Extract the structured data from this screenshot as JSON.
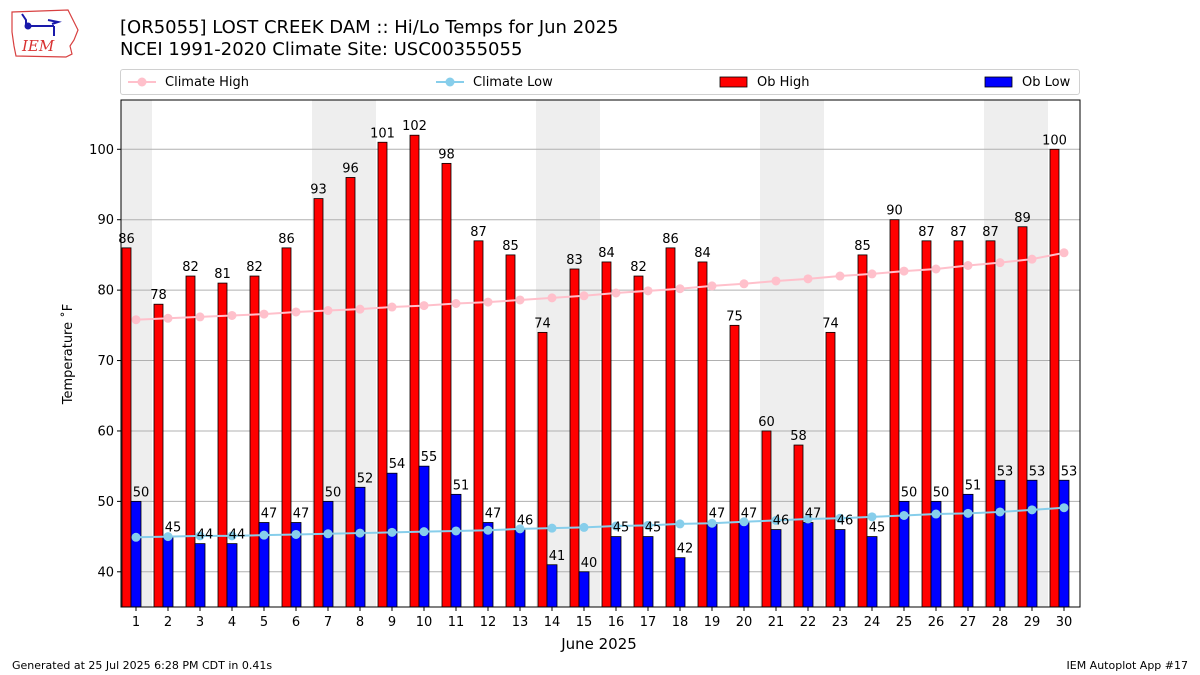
{
  "header": {
    "title_line1": "[OR5055] LOST CREEK DAM :: Hi/Lo Temps for Jun 2025",
    "title_line2": "NCEI 1991-2020 Climate Site: USC00355055",
    "logo_text": "IEM"
  },
  "footer": {
    "generated": "Generated at 25 Jul 2025 6:28 PM CDT in 0.41s",
    "app": "IEM Autoplot App #17"
  },
  "colors": {
    "ob_high": "#ff0000",
    "ob_low": "#0000ff",
    "climate_high": "#ffc0cb",
    "climate_low": "#87ceeb",
    "weekend_shade": "#eeeeee",
    "grid": "#b0b0b0"
  },
  "chart_data": {
    "type": "bar",
    "title": "[OR5055] LOST CREEK DAM :: Hi/Lo Temps for Jun 2025",
    "subtitle": "NCEI 1991-2020 Climate Site: USC00355055",
    "xlabel": "June 2025",
    "ylabel": "Temperature $^\\circ$F",
    "ylabel_display": "Temperature ˚F",
    "ylim": [
      35,
      107
    ],
    "yticks": [
      40,
      50,
      60,
      70,
      80,
      90,
      100
    ],
    "grid": "y",
    "legend_position": "top",
    "categories": [
      1,
      2,
      3,
      4,
      5,
      6,
      7,
      8,
      9,
      10,
      11,
      12,
      13,
      14,
      15,
      16,
      17,
      18,
      19,
      20,
      21,
      22,
      23,
      24,
      25,
      26,
      27,
      28,
      29,
      30
    ],
    "weekend_days": [
      1,
      7,
      8,
      14,
      15,
      21,
      22,
      28,
      29
    ],
    "series": [
      {
        "name": "Ob High",
        "kind": "bar",
        "values": [
          86,
          78,
          82,
          81,
          82,
          86,
          93,
          96,
          101,
          102,
          98,
          87,
          85,
          74,
          83,
          84,
          82,
          86,
          84,
          75,
          60,
          58,
          74,
          85,
          90,
          87,
          87,
          87,
          89,
          100
        ]
      },
      {
        "name": "Ob Low",
        "kind": "bar",
        "values": [
          50,
          45,
          44,
          44,
          47,
          47,
          50,
          52,
          54,
          55,
          51,
          47,
          46,
          41,
          40,
          45,
          45,
          42,
          47,
          47,
          46,
          47,
          46,
          45,
          50,
          50,
          51,
          53,
          53,
          53
        ]
      },
      {
        "name": "Climate High",
        "kind": "line",
        "values": [
          75.8,
          76.0,
          76.2,
          76.4,
          76.6,
          76.9,
          77.1,
          77.3,
          77.6,
          77.8,
          78.1,
          78.3,
          78.6,
          78.9,
          79.2,
          79.6,
          79.9,
          80.2,
          80.6,
          80.9,
          81.3,
          81.6,
          82.0,
          82.3,
          82.7,
          83.0,
          83.5,
          83.9,
          84.4,
          85.3
        ]
      },
      {
        "name": "Climate Low",
        "kind": "line",
        "values": [
          44.9,
          45.0,
          45.1,
          45.1,
          45.2,
          45.3,
          45.4,
          45.5,
          45.6,
          45.7,
          45.8,
          45.9,
          46.1,
          46.2,
          46.3,
          46.5,
          46.6,
          46.8,
          46.9,
          47.1,
          47.3,
          47.5,
          47.6,
          47.8,
          48.0,
          48.2,
          48.3,
          48.5,
          48.8,
          49.1
        ]
      }
    ]
  }
}
